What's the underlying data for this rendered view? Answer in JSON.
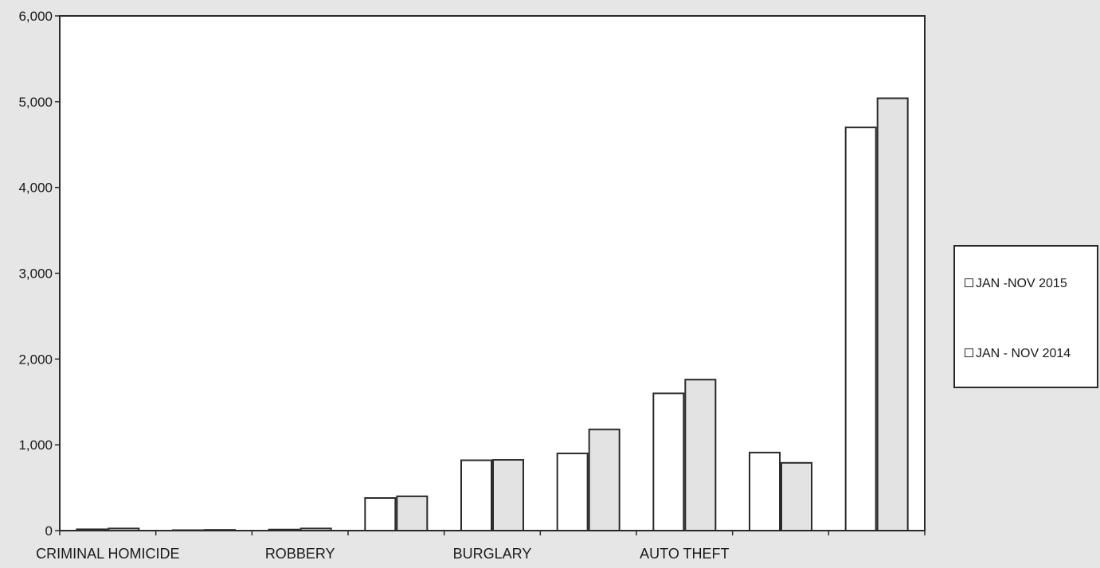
{
  "chart_data": {
    "type": "bar",
    "title": "",
    "xlabel": "",
    "ylabel": "",
    "ylim": [
      0,
      6000
    ],
    "yticks": [
      0,
      1000,
      2000,
      3000,
      4000,
      5000,
      6000
    ],
    "ytick_labels": [
      "0",
      "1,000",
      "2,000",
      "3,000",
      "4,000",
      "5,000",
      "6,000"
    ],
    "xtick_labels": [
      "CRIMINAL HOMICIDE",
      "ROBBERY",
      "BURGLARY",
      "AUTO THEFT"
    ],
    "grid": false,
    "legend_position": "right",
    "series": [
      {
        "name": "JAN -NOV 2015",
        "color": "#ffffff",
        "values": [
          15,
          5,
          12,
          380,
          820,
          900,
          1600,
          910,
          4700
        ]
      },
      {
        "name": "JAN - NOV 2014",
        "color": "#e3e3e3",
        "values": [
          25,
          8,
          25,
          400,
          825,
          1180,
          1760,
          790,
          5040
        ]
      }
    ]
  }
}
